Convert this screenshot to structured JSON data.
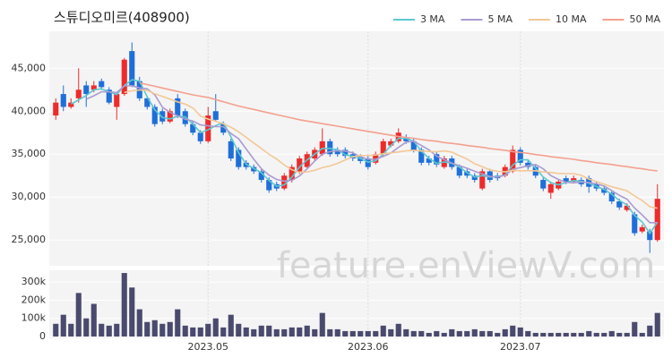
{
  "chart_data": {
    "type": "candlestick",
    "title": "스튜디오미르(408900)",
    "watermark": "feature.enViewV.com",
    "categories": [
      null,
      null,
      null,
      null,
      null,
      null,
      null,
      null,
      null,
      null,
      null,
      null,
      null,
      null,
      null,
      null,
      null,
      null,
      null,
      null,
      "2023.05",
      null,
      null,
      null,
      null,
      null,
      null,
      null,
      null,
      null,
      null,
      null,
      null,
      null,
      null,
      null,
      null,
      null,
      null,
      null,
      null,
      "2023.06",
      null,
      null,
      null,
      null,
      null,
      null,
      null,
      null,
      null,
      null,
      null,
      null,
      null,
      null,
      null,
      null,
      null,
      null,
      null,
      "2023.07",
      null,
      null,
      null,
      null,
      null,
      null,
      null,
      null,
      null,
      null,
      null,
      null,
      null,
      null,
      null,
      null,
      null,
      null
    ],
    "open": [
      39500,
      42000,
      40500,
      41500,
      43000,
      42500,
      43500,
      42500,
      40500,
      42000,
      47000,
      43500,
      41500,
      40500,
      40000,
      38800,
      41500,
      40000,
      38500,
      37500,
      36500,
      40000,
      38500,
      36500,
      35500,
      34000,
      33500,
      33000,
      32000,
      31500,
      31000,
      32000,
      33000,
      33500,
      34500,
      35000,
      36500,
      35500,
      35500,
      35000,
      34700,
      34500,
      34000,
      35000,
      36000,
      36500,
      37000,
      36500,
      35500,
      34500,
      35000,
      33500,
      34500,
      33500,
      33000,
      32500,
      31000,
      33000,
      32500,
      32500,
      33000,
      35500,
      34000,
      33500,
      32000,
      30500,
      31000,
      32200,
      31800,
      32000,
      32200,
      31500,
      31000,
      30500,
      29500,
      28500,
      28000,
      26000,
      26000,
      25000
    ],
    "high": [
      41500,
      43000,
      41500,
      45000,
      43500,
      43500,
      43800,
      42800,
      42200,
      46200,
      48000,
      44000,
      41800,
      40800,
      40300,
      40300,
      42000,
      40300,
      38800,
      37800,
      40500,
      42000,
      38800,
      36800,
      35800,
      34300,
      33800,
      33300,
      32300,
      31800,
      32800,
      33800,
      34800,
      35300,
      35800,
      38000,
      36800,
      35800,
      35800,
      35300,
      35000,
      34800,
      35300,
      36800,
      36800,
      38000,
      37300,
      36800,
      35800,
      34800,
      35300,
      34800,
      34800,
      33800,
      33300,
      32800,
      33300,
      33300,
      32800,
      33800,
      36000,
      35800,
      34300,
      33800,
      32300,
      31800,
      32100,
      32500,
      32500,
      32300,
      32500,
      31800,
      31300,
      30800,
      29800,
      29300,
      28300,
      26800,
      26300,
      31500
    ],
    "low": [
      39000,
      40000,
      40300,
      41000,
      40500,
      42200,
      42500,
      40800,
      39000,
      41800,
      42800,
      41200,
      40200,
      38200,
      38500,
      38600,
      39200,
      38200,
      37200,
      36200,
      36300,
      38800,
      37200,
      34200,
      33200,
      33200,
      32700,
      31700,
      30500,
      30700,
      30800,
      31700,
      32700,
      33200,
      34200,
      34800,
      34700,
      34700,
      34500,
      34200,
      33900,
      33200,
      33800,
      34800,
      35800,
      36300,
      36200,
      35200,
      33700,
      33700,
      33500,
      33300,
      33200,
      32200,
      32200,
      31700,
      30800,
      31700,
      31900,
      32300,
      32800,
      33700,
      33200,
      32200,
      30700,
      29800,
      30800,
      31500,
      31600,
      31200,
      30500,
      30700,
      30200,
      29200,
      28500,
      28300,
      25500,
      25800,
      23500,
      24800
    ],
    "close": [
      41000,
      40500,
      41000,
      42500,
      42000,
      43000,
      42800,
      41000,
      42000,
      46000,
      43000,
      41500,
      40500,
      38500,
      38800,
      40000,
      39500,
      38500,
      37500,
      36500,
      39500,
      39000,
      37500,
      34500,
      33500,
      33500,
      33000,
      32000,
      30800,
      31000,
      32500,
      33500,
      34500,
      35000,
      35500,
      36500,
      35000,
      35000,
      34800,
      34500,
      34200,
      33500,
      35000,
      36500,
      36500,
      37500,
      36500,
      35500,
      34000,
      34000,
      33800,
      34500,
      33500,
      32500,
      32500,
      32000,
      33000,
      32000,
      32200,
      33500,
      35500,
      34000,
      33500,
      32500,
      31000,
      31500,
      31800,
      31800,
      32200,
      31500,
      31200,
      31000,
      30500,
      29500,
      28800,
      29000,
      25800,
      26500,
      25000,
      29800
    ],
    "up_color": "#ee2b2b",
    "down_color": "#1f6fd8",
    "volume": [
      70000,
      120000,
      70000,
      240000,
      100000,
      180000,
      70000,
      60000,
      70000,
      350000,
      270000,
      150000,
      80000,
      90000,
      70000,
      80000,
      150000,
      60000,
      50000,
      50000,
      70000,
      100000,
      50000,
      120000,
      70000,
      50000,
      40000,
      60000,
      60000,
      40000,
      40000,
      50000,
      50000,
      60000,
      40000,
      130000,
      40000,
      40000,
      30000,
      30000,
      30000,
      30000,
      30000,
      60000,
      40000,
      70000,
      40000,
      30000,
      30000,
      20000,
      30000,
      20000,
      40000,
      30000,
      30000,
      40000,
      30000,
      30000,
      20000,
      40000,
      60000,
      50000,
      30000,
      20000,
      20000,
      20000,
      20000,
      20000,
      20000,
      20000,
      30000,
      20000,
      20000,
      30000,
      20000,
      20000,
      80000,
      20000,
      60000,
      130000
    ],
    "volume_color": "#4a4a6e",
    "series": [
      {
        "name": "3 MA",
        "color": "#5cc8d0",
        "values": [
          null,
          null,
          40833,
          41333,
          41833,
          42500,
          42600,
          42267,
          41933,
          43000,
          43667,
          43500,
          41667,
          40167,
          39267,
          39100,
          39433,
          39333,
          38500,
          37500,
          37833,
          38333,
          38667,
          37000,
          35167,
          33833,
          33333,
          32833,
          31933,
          31267,
          31433,
          32333,
          33500,
          34333,
          35000,
          35667,
          35667,
          35500,
          34933,
          34767,
          34500,
          34067,
          34233,
          35000,
          36000,
          36833,
          36833,
          36500,
          35333,
          34500,
          33933,
          34100,
          33933,
          33500,
          32833,
          32333,
          32500,
          32333,
          32400,
          32567,
          33733,
          34333,
          34333,
          33333,
          32333,
          31667,
          31433,
          31700,
          31933,
          31833,
          31633,
          31233,
          30900,
          30333,
          29600,
          29100,
          27867,
          27100,
          25767,
          27100
        ]
      },
      {
        "name": "5 MA",
        "color": "#a99bd2",
        "values": [
          null,
          null,
          null,
          null,
          41400,
          41800,
          42260,
          42260,
          42160,
          42960,
          42960,
          42700,
          42600,
          41900,
          40460,
          39860,
          39460,
          39060,
          38860,
          38400,
          38300,
          38200,
          38200,
          37400,
          36800,
          35600,
          34400,
          33300,
          32560,
          32060,
          31860,
          31960,
          32460,
          33300,
          34200,
          35000,
          35300,
          35400,
          35360,
          35160,
          34700,
          34400,
          34400,
          34740,
          35140,
          35800,
          36400,
          36500,
          36000,
          35500,
          34760,
          34360,
          33960,
          33660,
          33360,
          33000,
          32700,
          32400,
          32340,
          32540,
          33240,
          33440,
          33640,
          33800,
          33300,
          32500,
          32060,
          31720,
          31660,
          31760,
          31700,
          31540,
          31280,
          30740,
          30200,
          29760,
          28720,
          27920,
          27020,
          27020
        ]
      },
      {
        "name": "10 MA",
        "color": "#f2c896",
        "values": [
          null,
          null,
          null,
          null,
          null,
          null,
          null,
          null,
          null,
          42180,
          42380,
          42480,
          42430,
          42030,
          41710,
          41410,
          41080,
          40830,
          40380,
          39430,
          39080,
          38830,
          38530,
          38130,
          37600,
          36950,
          36300,
          35650,
          34980,
          34430,
          33730,
          33180,
          32880,
          32930,
          33130,
          33430,
          33630,
          33930,
          34330,
          34680,
          34850,
          34850,
          34900,
          35050,
          35150,
          35250,
          35400,
          35450,
          35370,
          35320,
          35280,
          35380,
          35230,
          34830,
          34430,
          33880,
          33530,
          33180,
          33000,
          32950,
          33120,
          33070,
          33070,
          33070,
          32920,
          32870,
          32750,
          32730,
          32730,
          32530,
          32100,
          31800,
          31500,
          31200,
          30980,
          30730,
          30130,
          29600,
          28880,
          28710
        ]
      },
      {
        "name": "50 MA",
        "color": "#f4a08e",
        "values": [
          null,
          null,
          null,
          null,
          null,
          null,
          null,
          null,
          null,
          null,
          null,
          43300,
          43100,
          42900,
          42700,
          42500,
          42300,
          42100,
          41900,
          41750,
          41600,
          41350,
          41100,
          40850,
          40600,
          40400,
          40200,
          40000,
          39800,
          39600,
          39400,
          39200,
          39000,
          38850,
          38700,
          38550,
          38400,
          38250,
          38100,
          37950,
          37800,
          37650,
          37500,
          37350,
          37200,
          37050,
          36950,
          36850,
          36700,
          36600,
          36500,
          36350,
          36250,
          36150,
          36000,
          35900,
          35800,
          35650,
          35550,
          35450,
          35300,
          35200,
          35100,
          34950,
          34850,
          34700,
          34600,
          34500,
          34400,
          34250,
          34150,
          34000,
          33900,
          33800,
          33650,
          33550,
          33400,
          33300,
          33150,
          33050
        ]
      }
    ],
    "ylim": [
      22000,
      49300
    ],
    "yticks": [
      {
        "value": 25000,
        "label": "25,000"
      },
      {
        "value": 30000,
        "label": "30,000"
      },
      {
        "value": 35000,
        "label": "35,000"
      },
      {
        "value": 40000,
        "label": "40,000"
      },
      {
        "value": 45000,
        "label": "45,000"
      }
    ],
    "y2lim": [
      0,
      360000
    ],
    "y2ticks": [
      0,
      {
        "value": 100000,
        "label": "100k"
      },
      {
        "value": 200000,
        "label": "200k"
      },
      {
        "value": 300000,
        "label": "300k"
      }
    ],
    "grid": true,
    "legend": "top-right"
  }
}
